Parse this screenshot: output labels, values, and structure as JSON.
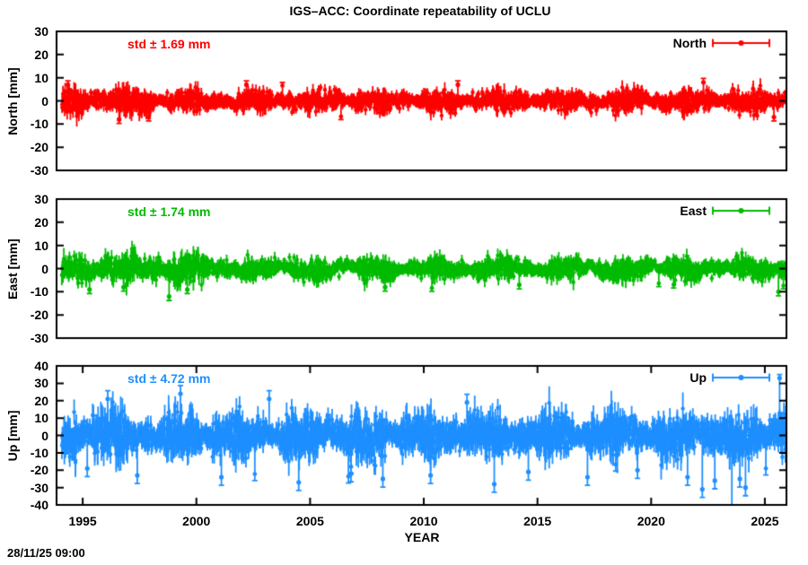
{
  "timestamp": "28/11/25 09:00",
  "chart_data": {
    "type": "scatter",
    "subtype": "errorbar-time-series",
    "title": "IGS–ACC: Coordinate repeatability of UCLU",
    "xlabel": "YEAR",
    "grid": false,
    "legend_position": "top-right-inside",
    "x_range": [
      1993.85,
      2025.95
    ],
    "data_span": [
      1994.1,
      2025.93
    ],
    "x_ticks": [
      1995,
      2000,
      2005,
      2010,
      2015,
      2020,
      2025
    ],
    "x_tick_labels": [
      "1995",
      "2000",
      "2005",
      "2010",
      "2015",
      "2020",
      "2025"
    ],
    "panels": [
      {
        "name": "North",
        "legend_label": "North",
        "ylabel": "North [mm]",
        "std_label": "std ± 1.69 mm",
        "std_mm": 1.69,
        "color": "#ff0000",
        "ylim": [
          -30,
          30
        ],
        "ytick_values": [
          30,
          20,
          10,
          0,
          -10,
          -20,
          -30
        ],
        "ytick_labels": [
          "30",
          "20",
          "10",
          "0",
          "-10",
          "-20",
          "-30"
        ],
        "show_x_ticks": false,
        "wander_mm": 1.0,
        "early_until": 1998,
        "early_factor": 1.25,
        "clamp_sigma": 3.1,
        "rand_outlier_rate": 0.002,
        "outlier_down_bias": 0.6,
        "rand_outlier_extra": 2,
        "outliers": [
          {
            "x": 1994.35,
            "y": 7
          },
          {
            "x": 1996.6,
            "y": -8
          },
          {
            "x": 1997.9,
            "y": -7
          },
          {
            "x": 2002.2,
            "y": 7
          },
          {
            "x": 2011.5,
            "y": 7
          },
          {
            "x": 2022.3,
            "y": 8
          },
          {
            "x": 2025.4,
            "y": -7
          }
        ]
      },
      {
        "name": "East",
        "legend_label": "East",
        "ylabel": "East [mm]",
        "std_label": "std ± 1.74 mm",
        "std_mm": 1.74,
        "color": "#00bb00",
        "ylim": [
          -30,
          30
        ],
        "ytick_values": [
          30,
          20,
          10,
          0,
          -10,
          -20,
          -30
        ],
        "ytick_labels": [
          "30",
          "20",
          "10",
          "0",
          "-10",
          "-20",
          "-30"
        ],
        "show_x_ticks": false,
        "wander_mm": 1.6,
        "early_until": 2001,
        "early_factor": 1.3,
        "clamp_sigma": 3.1,
        "rand_outlier_rate": 0.003,
        "outlier_down_bias": 0.75,
        "rand_outlier_extra": 3,
        "outliers": [
          {
            "x": 1995.3,
            "y": -9
          },
          {
            "x": 1996.8,
            "y": -8
          },
          {
            "x": 1998.8,
            "y": -12
          },
          {
            "x": 1999.6,
            "y": -9
          },
          {
            "x": 2008.3,
            "y": -8
          },
          {
            "x": 2014.2,
            "y": -7
          },
          {
            "x": 2025.6,
            "y": -10
          }
        ]
      },
      {
        "name": "Up",
        "legend_label": "Up",
        "ylabel": "Up [mm]",
        "std_label": "std ± 4.72 mm",
        "std_mm": 4.72,
        "color": "#1e8fff",
        "ylim": [
          -40,
          40
        ],
        "ytick_values": [
          40,
          30,
          20,
          10,
          0,
          -10,
          -20,
          -30,
          -40
        ],
        "ytick_labels": [
          "40",
          "30",
          "20",
          "10",
          "0",
          "-10",
          "-20",
          "-30",
          "-40"
        ],
        "show_x_ticks": true,
        "wander_mm": 2.2,
        "early_until": 1997,
        "early_factor": 1.15,
        "clamp_sigma": 2.9,
        "rand_outlier_rate": 0.006,
        "outlier_down_bias": 0.8,
        "rand_outlier_extra": 8,
        "outliers": [
          {
            "x": 1995.2,
            "y": -19
          },
          {
            "x": 1996.1,
            "y": 21
          },
          {
            "x": 1997.4,
            "y": -23
          },
          {
            "x": 1999.3,
            "y": 24
          },
          {
            "x": 2001.1,
            "y": -24
          },
          {
            "x": 2003.2,
            "y": 21
          },
          {
            "x": 2004.5,
            "y": -27
          },
          {
            "x": 2006.8,
            "y": -22
          },
          {
            "x": 2008.2,
            "y": -25
          },
          {
            "x": 2010.3,
            "y": -23
          },
          {
            "x": 2011.9,
            "y": 19
          },
          {
            "x": 2013.1,
            "y": -28
          },
          {
            "x": 2014.6,
            "y": -21
          },
          {
            "x": 2017.2,
            "y": -24
          },
          {
            "x": 2019.4,
            "y": -20
          },
          {
            "x": 2021.6,
            "y": -24
          },
          {
            "x": 2022.25,
            "y": -31
          },
          {
            "x": 2022.8,
            "y": -26
          },
          {
            "x": 2023.55,
            "y": -6,
            "lo": -40
          },
          {
            "x": 2023.9,
            "y": -25
          },
          {
            "x": 2024.15,
            "y": -30
          },
          {
            "x": 2025.65,
            "y": 33,
            "lo": 8,
            "hi": 35
          }
        ]
      }
    ]
  }
}
